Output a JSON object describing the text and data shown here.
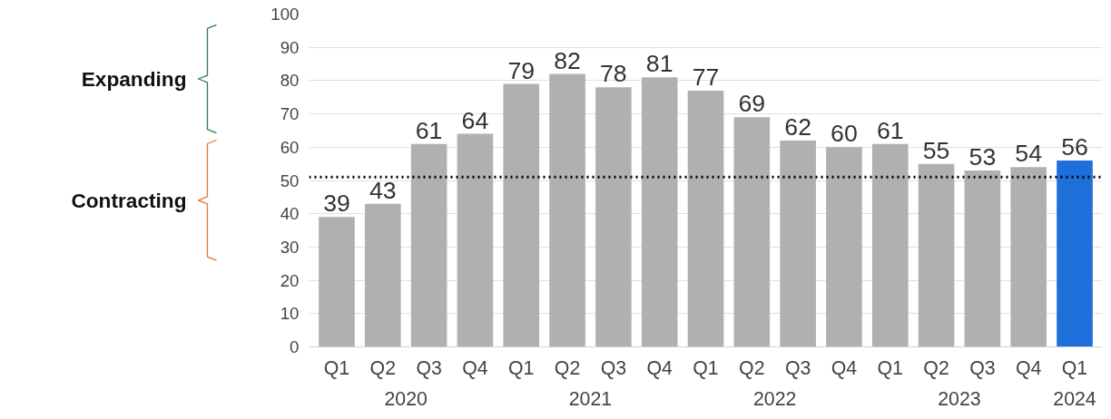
{
  "chart_data": {
    "type": "bar",
    "categories": [
      "Q1",
      "Q2",
      "Q3",
      "Q4",
      "Q1",
      "Q2",
      "Q3",
      "Q4",
      "Q1",
      "Q2",
      "Q3",
      "Q4",
      "Q1",
      "Q2",
      "Q3",
      "Q4",
      "Q1"
    ],
    "values": [
      39,
      43,
      61,
      64,
      79,
      82,
      78,
      81,
      77,
      69,
      62,
      60,
      61,
      55,
      53,
      54,
      56
    ],
    "colors": [
      "#b0b0b0",
      "#b0b0b0",
      "#b0b0b0",
      "#b0b0b0",
      "#b0b0b0",
      "#b0b0b0",
      "#b0b0b0",
      "#b0b0b0",
      "#b0b0b0",
      "#b0b0b0",
      "#b0b0b0",
      "#b0b0b0",
      "#b0b0b0",
      "#b0b0b0",
      "#b0b0b0",
      "#b0b0b0",
      "#1f6fdb"
    ],
    "data_labels": true,
    "ylim": [
      0,
      100
    ],
    "yticks": [
      0,
      10,
      20,
      30,
      40,
      50,
      60,
      70,
      80,
      90,
      100
    ],
    "grid": "y",
    "ref_lines": [
      {
        "axis": "y",
        "value": 51,
        "color": "#000000",
        "line_style": "dotted"
      }
    ],
    "annotations": [
      "Expanding",
      "Contracting",
      "2020",
      "2021",
      "2022",
      "2023",
      "2024"
    ]
  }
}
